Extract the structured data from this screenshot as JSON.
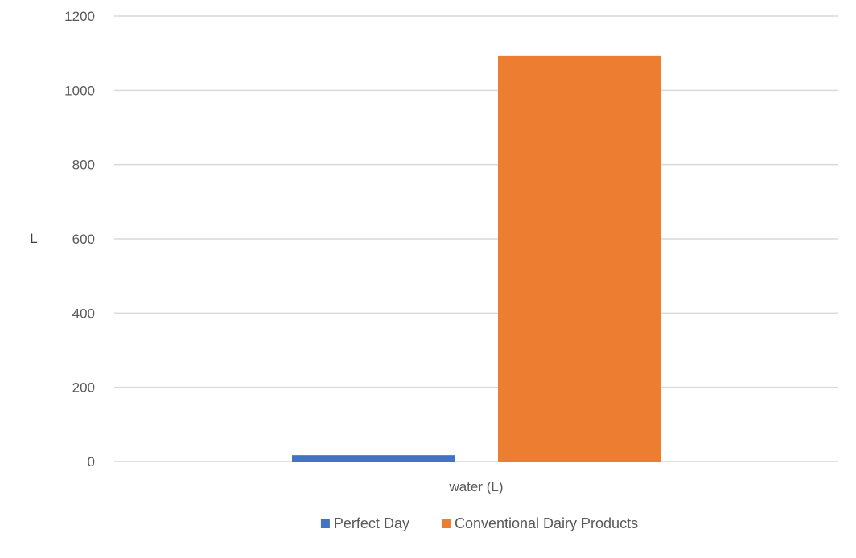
{
  "chart_data": {
    "type": "bar",
    "categories": [
      "water (L)"
    ],
    "series": [
      {
        "name": "Perfect Day",
        "values": [
          17
        ],
        "color": "#4472C4"
      },
      {
        "name": "Conventional Dairy Products",
        "values": [
          1092
        ],
        "color": "#ED7D31"
      }
    ],
    "ylabel": "L",
    "xlabel": "",
    "ylim": [
      0,
      1200
    ],
    "yticks": [
      "0",
      "200",
      "400",
      "600",
      "800",
      "1000",
      "1200"
    ],
    "grid": true,
    "legend_position": "bottom",
    "gridline_color": "#D9D9D9"
  }
}
